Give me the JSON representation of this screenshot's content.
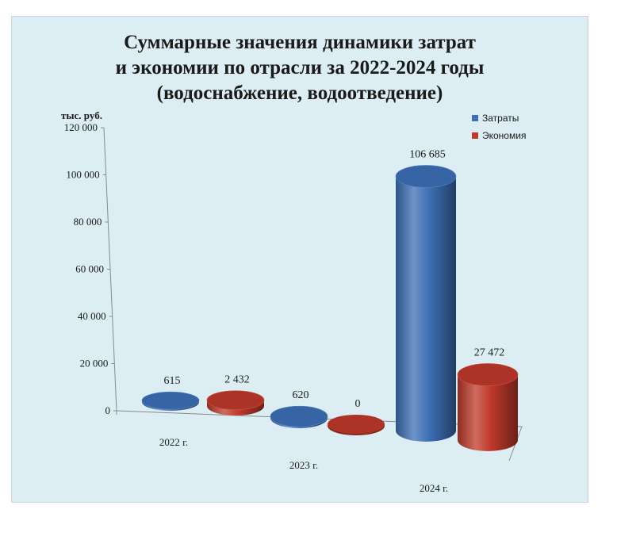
{
  "chart_data": {
    "type": "bar",
    "title_lines": [
      "Суммарные значения динамики затрат",
      "и экономии по отрасли за 2022-2024 годы",
      "(водоснабжение, водоотведение)"
    ],
    "ylabel": "тыс. руб.",
    "ylim": [
      0,
      120000
    ],
    "yticks": [
      "0",
      "20 000",
      "40 000",
      "60 000",
      "80 000",
      "100 000",
      "120 000"
    ],
    "categories": [
      "2022 г.",
      "2023 г.",
      "2024 г."
    ],
    "series": [
      {
        "name": "Затраты",
        "values": [
          615,
          620,
          106685
        ],
        "labels": [
          "615",
          "620",
          "106 685"
        ],
        "color": "#3d6fb6"
      },
      {
        "name": "Экономия",
        "values": [
          2432,
          0,
          27472
        ],
        "labels": [
          "2 432",
          "0",
          "27 472"
        ],
        "color": "#c0392b"
      }
    ],
    "legend_position": "top-right",
    "background": "#dceef3",
    "chart_style": "3d-cylinder"
  }
}
